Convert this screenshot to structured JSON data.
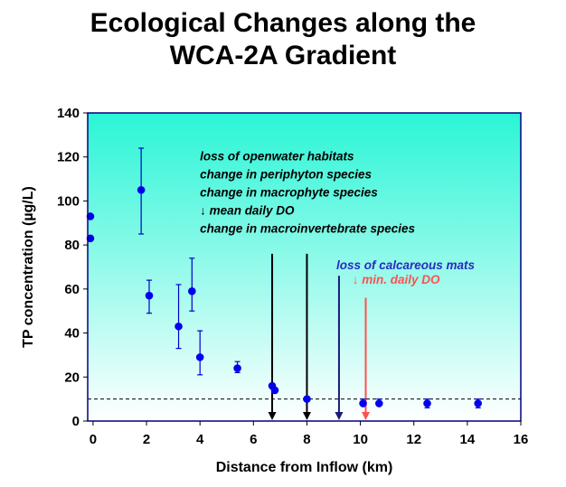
{
  "chart_data": {
    "type": "scatter",
    "title_line1": "Ecological Changes along the",
    "title_line2": "WCA-2A Gradient",
    "xlabel": "Distance from Inflow (km)",
    "ylabel": "TP concentration (µg/L)",
    "xlim": [
      0,
      16
    ],
    "ylim": [
      0,
      140
    ],
    "x_ticks": [
      "0",
      "2",
      "4",
      "6",
      "8",
      "10",
      "12",
      "14",
      "16"
    ],
    "y_ticks": [
      "0",
      "20",
      "40",
      "60",
      "80",
      "100",
      "120",
      "140"
    ],
    "grid": false,
    "reference_line": {
      "y": 10,
      "style": "dashed"
    },
    "points": [
      {
        "x": -0.1,
        "y": 93,
        "ylo": 93,
        "yhi": 93
      },
      {
        "x": -0.1,
        "y": 83,
        "ylo": 83,
        "yhi": 83
      },
      {
        "x": 1.8,
        "y": 105,
        "ylo": 85,
        "yhi": 124
      },
      {
        "x": 2.1,
        "y": 57,
        "ylo": 49,
        "yhi": 64
      },
      {
        "x": 3.2,
        "y": 43,
        "ylo": 33,
        "yhi": 62
      },
      {
        "x": 3.7,
        "y": 59,
        "ylo": 50,
        "yhi": 74
      },
      {
        "x": 4.0,
        "y": 29,
        "ylo": 21,
        "yhi": 41
      },
      {
        "x": 5.4,
        "y": 24,
        "ylo": 22,
        "yhi": 27
      },
      {
        "x": 6.7,
        "y": 16,
        "ylo": 16,
        "yhi": 16
      },
      {
        "x": 6.8,
        "y": 14,
        "ylo": 14,
        "yhi": 14
      },
      {
        "x": 8.0,
        "y": 10,
        "ylo": 10,
        "yhi": 10
      },
      {
        "x": 10.1,
        "y": 8,
        "ylo": 7,
        "yhi": 10
      },
      {
        "x": 10.7,
        "y": 8,
        "ylo": 7,
        "yhi": 10
      },
      {
        "x": 12.5,
        "y": 8,
        "ylo": 6,
        "yhi": 10
      },
      {
        "x": 14.4,
        "y": 8,
        "ylo": 6,
        "yhi": 10
      }
    ],
    "arrows": [
      {
        "x": 6.7,
        "y_top": 76,
        "color": "#000000"
      },
      {
        "x": 8.0,
        "y_top": 76,
        "color": "#000000"
      },
      {
        "x": 9.2,
        "y_top": 66,
        "color": "#1a1a7a"
      },
      {
        "x": 10.2,
        "y_top": 56,
        "color": "#ff5050"
      }
    ],
    "annotations": [
      {
        "group": "black",
        "color": "#000000",
        "x": 4.0,
        "y": 118.5,
        "lines": [
          "loss of openwater habitats",
          "change in periphyton species",
          "change in macrophyte species",
          "↓ mean daily DO",
          "change in macroinvertebrate species"
        ]
      },
      {
        "group": "blue",
        "color": "#2b2bc0",
        "x": 9.1,
        "y": 69,
        "lines": [
          "loss of calcareous mats"
        ]
      },
      {
        "group": "red",
        "color": "#ff5050",
        "x": 9.7,
        "y": 62.5,
        "lines": [
          "↓ min. daily DO"
        ]
      }
    ],
    "colors": {
      "points": "#0000ee",
      "errorbars": "#0000cc",
      "bg_top": "#2af5d6",
      "bg_bottom": "#ffffff",
      "frame": "#000080"
    }
  }
}
